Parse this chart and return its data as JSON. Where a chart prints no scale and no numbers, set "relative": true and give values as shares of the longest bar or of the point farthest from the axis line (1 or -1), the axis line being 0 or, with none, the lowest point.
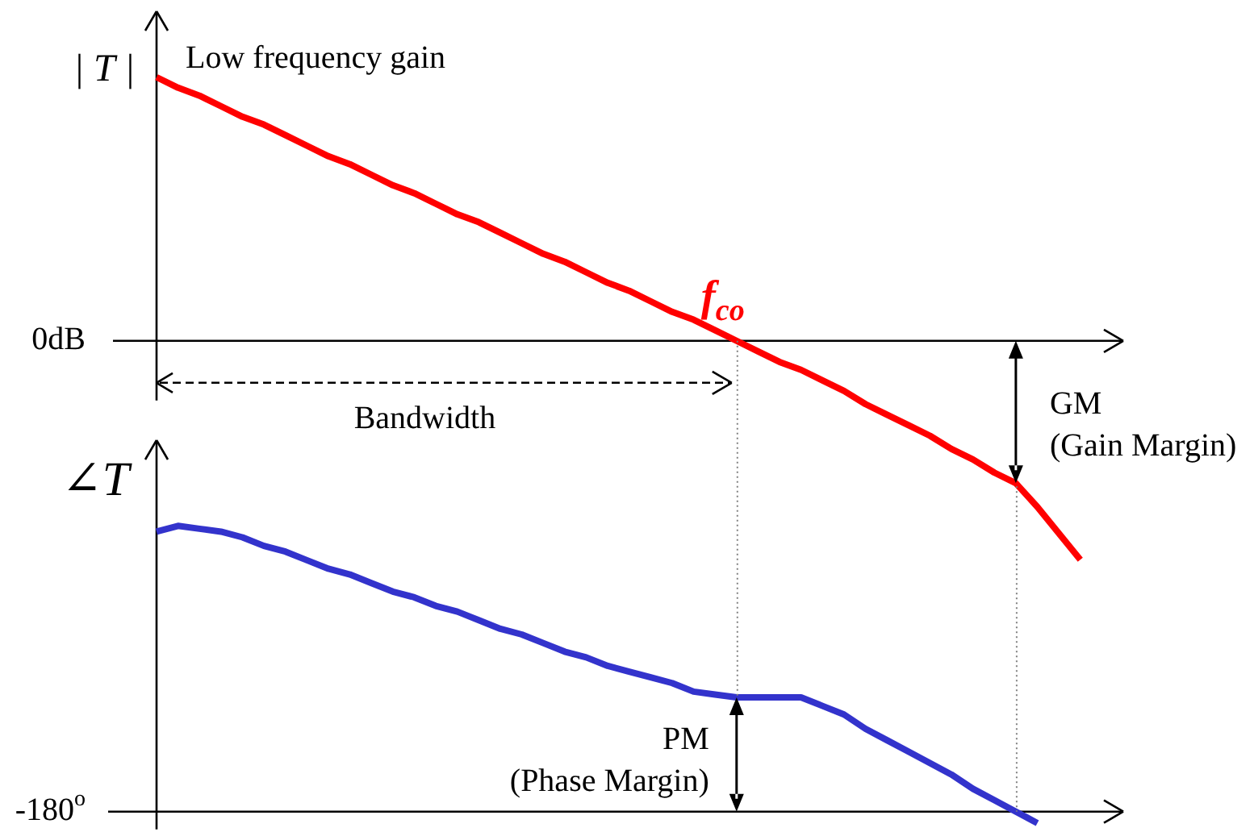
{
  "chart_data": [
    {
      "type": "line",
      "ylabel": "| T |",
      "relative": true,
      "marker": "none",
      "categories": [
        null,
        null,
        null,
        null,
        null,
        null,
        null,
        null,
        null,
        null,
        null,
        null,
        null,
        null,
        null,
        null,
        null,
        null,
        null,
        null,
        null,
        null,
        null,
        null,
        null,
        null,
        null,
        null,
        null,
        null,
        null,
        null,
        null,
        null,
        null,
        null,
        null,
        null,
        null,
        null,
        null,
        null,
        null,
        null,
        null,
        null
      ],
      "series": [
        {
          "color": "#ff0000",
          "values": [
            1,
            0.96,
            0.93,
            0.89,
            0.85,
            0.82,
            0.78,
            0.74,
            0.7,
            0.67,
            0.63,
            0.59,
            0.56,
            0.52,
            0.48,
            0.45,
            0.41,
            0.37,
            0.33,
            0.3,
            0.26,
            0.22,
            0.19,
            0.15,
            0.11,
            0.08,
            0.04,
            0,
            -0.04,
            -0.08,
            -0.11,
            -0.15,
            -0.19,
            -0.24,
            -0.28,
            -0.32,
            -0.36,
            -0.41,
            -0.45,
            -0.5,
            -0.54,
            -0.63,
            -0.73,
            -0.83,
            null,
            null
          ]
        }
      ],
      "annotations": [
        "0dB",
        "Low frequency gain",
        {
          "text": "f$_{co}$",
          "y": 0
        },
        "Bandwidth",
        "GM\n(Gain Margin)"
      ]
    },
    {
      "type": "line",
      "ylabel": "∠T",
      "relative": true,
      "marker": "none",
      "categories": [
        null,
        null,
        null,
        null,
        null,
        null,
        null,
        null,
        null,
        null,
        null,
        null,
        null,
        null,
        null,
        null,
        null,
        null,
        null,
        null,
        null,
        null,
        null,
        null,
        null,
        null,
        null,
        null,
        null,
        null,
        null,
        null,
        null,
        null,
        null,
        null,
        null,
        null,
        null,
        null,
        null,
        null,
        null,
        null,
        null,
        null
      ],
      "series": [
        {
          "color": "#3333cc",
          "values": [
            0.98,
            1,
            0.99,
            0.98,
            0.96,
            0.93,
            0.91,
            0.88,
            0.85,
            0.83,
            0.8,
            0.77,
            0.75,
            0.72,
            0.7,
            0.67,
            0.64,
            0.62,
            0.59,
            0.56,
            0.54,
            0.51,
            0.49,
            0.47,
            0.45,
            0.42,
            0.41,
            0.4,
            0.4,
            0.4,
            0.4,
            0.37,
            0.34,
            0.29,
            0.25,
            0.21,
            0.17,
            0.13,
            0.08,
            0.04,
            0,
            -0.04,
            null,
            null,
            null,
            null
          ]
        }
      ],
      "annotations": [
        "-180$^{o}$",
        "PM\n(Phase Margin)"
      ]
    }
  ]
}
